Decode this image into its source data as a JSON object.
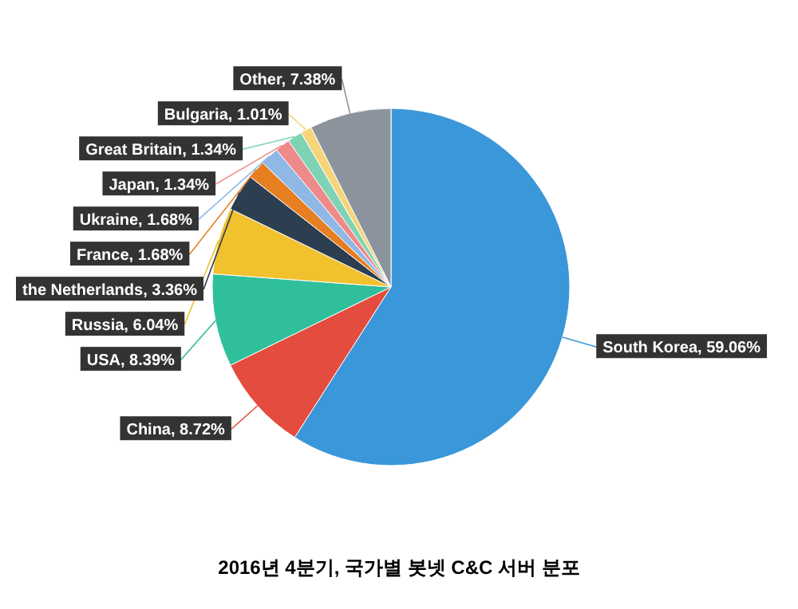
{
  "chart_data": {
    "type": "pie",
    "title": "2016년 4분기, 국가별 봇넷 C&C 서버 분포",
    "categories": [
      "South Korea",
      "China",
      "USA",
      "Russia",
      "the Netherlands",
      "France",
      "Ukraine",
      "Japan",
      "Great Britain",
      "Bulgaria",
      "Other"
    ],
    "values": [
      59.06,
      8.72,
      8.39,
      6.04,
      3.36,
      1.68,
      1.68,
      1.34,
      1.34,
      1.01,
      7.38
    ],
    "value_labels": [
      "59.06%",
      "8.72%",
      "8.39%",
      "6.04%",
      "3.36%",
      "1.68%",
      "1.68%",
      "1.34%",
      "1.34%",
      "1.01%",
      "7.38%"
    ],
    "colors": [
      "#3a97d9",
      "#e44c3f",
      "#2fbf9b",
      "#f2c12e",
      "#2c3e50",
      "#e67e22",
      "#8fb8e6",
      "#ef8a8a",
      "#7fd3b4",
      "#f5d47a",
      "#8b949c"
    ]
  }
}
